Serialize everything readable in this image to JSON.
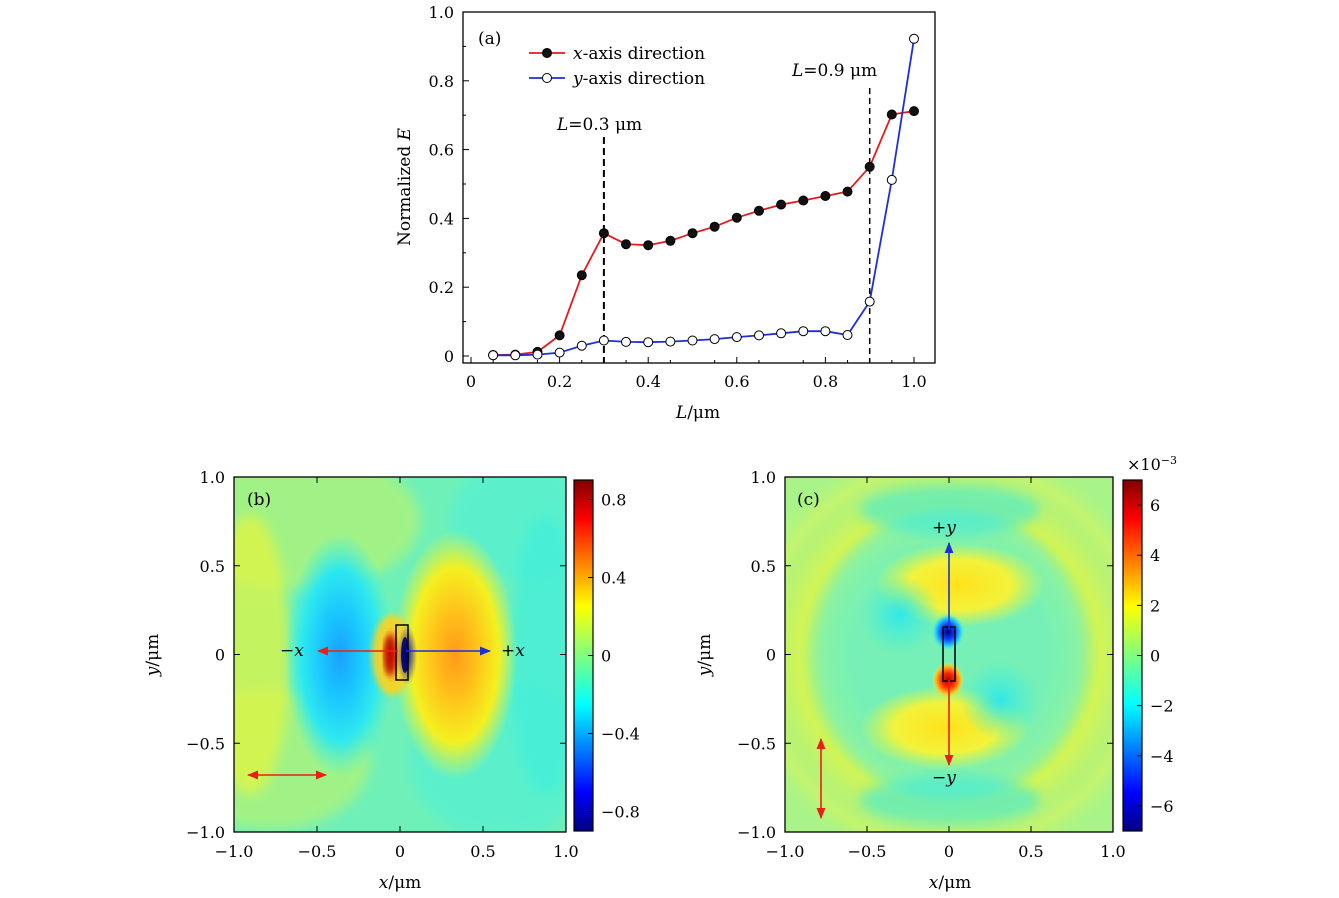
{
  "chart_data": [
    {
      "type": "line",
      "panel_label": "(a)",
      "xlabel_italic": "L",
      "xlabel_unit": "/μm",
      "ylabel_prefix": "Normalized ",
      "ylabel_italic": "E",
      "xlim": [
        0,
        1.0
      ],
      "ylim": [
        0,
        1.0
      ],
      "xticks": [
        "0",
        "0.2",
        "0.4",
        "0.6",
        "0.8",
        "1.0"
      ],
      "yticks": [
        "0",
        "0.2",
        "0.4",
        "0.6",
        "0.8",
        "1.0"
      ],
      "legend_position": "top-left",
      "series": [
        {
          "name_italic": "x",
          "name_rest": "-axis direction",
          "color": "#e41a1c",
          "marker": "filled-circle",
          "x": [
            0.05,
            0.1,
            0.15,
            0.2,
            0.25,
            0.3,
            0.35,
            0.4,
            0.45,
            0.5,
            0.55,
            0.6,
            0.65,
            0.7,
            0.75,
            0.8,
            0.85,
            0.9,
            0.95,
            1.0
          ],
          "y": [
            0.003,
            0.004,
            0.012,
            0.06,
            0.235,
            0.357,
            0.325,
            0.322,
            0.335,
            0.357,
            0.376,
            0.402,
            0.422,
            0.44,
            0.452,
            0.465,
            0.478,
            0.55,
            0.702,
            0.712
          ]
        },
        {
          "name_italic": "y",
          "name_rest": "-axis direction",
          "color": "#1f2fd6",
          "marker": "open-circle",
          "x": [
            0.05,
            0.1,
            0.15,
            0.2,
            0.25,
            0.3,
            0.35,
            0.4,
            0.45,
            0.5,
            0.55,
            0.6,
            0.65,
            0.7,
            0.75,
            0.8,
            0.85,
            0.9,
            0.95,
            1.0
          ],
          "y": [
            0.002,
            0.002,
            0.004,
            0.01,
            0.03,
            0.045,
            0.041,
            0.04,
            0.042,
            0.045,
            0.049,
            0.055,
            0.06,
            0.066,
            0.072,
            0.072,
            0.061,
            0.158,
            0.512,
            0.922
          ]
        }
      ],
      "annotations": [
        {
          "label_italic": "L",
          "label_rest": "=0.3 μm",
          "x": 0.3
        },
        {
          "label_italic": "L",
          "label_rest": "=0.9 μm",
          "x": 0.9
        }
      ]
    },
    {
      "type": "heatmap",
      "panel_label": "(b)",
      "xlabel_italic": "x",
      "xlabel_unit": "/μm",
      "ylabel_italic": "y",
      "ylabel_unit": "/μm",
      "xlim": [
        -1.0,
        1.0
      ],
      "ylim": [
        -1.0,
        1.0
      ],
      "xticks": [
        "−1.0",
        "−0.5",
        "0",
        "0.5",
        "1.0"
      ],
      "yticks": [
        "−1.0",
        "−0.5",
        "0",
        "0.5",
        "1.0"
      ],
      "colorbar_range": [
        -0.9,
        0.9
      ],
      "colorbar_ticks": [
        "0.8",
        "0.4",
        "0",
        "−0.4",
        "−0.8"
      ],
      "colorbar_values": [
        0.8,
        0.4,
        0,
        -0.4,
        -0.8
      ],
      "colormap": "jet",
      "annotations": {
        "minus": "−x",
        "plus": "+x"
      }
    },
    {
      "type": "heatmap",
      "panel_label": "(c)",
      "xlabel_italic": "x",
      "xlabel_unit": "/μm",
      "ylabel_italic": "y",
      "ylabel_unit": "/μm",
      "xlim": [
        -1.0,
        1.0
      ],
      "ylim": [
        -1.0,
        1.0
      ],
      "xticks": [
        "−1.0",
        "−0.5",
        "0",
        "0.5",
        "1.0"
      ],
      "yticks": [
        "−1.0",
        "−0.5",
        "0",
        "0.5",
        "1.0"
      ],
      "colorbar_range": [
        -7,
        7
      ],
      "colorbar_ticks": [
        "6",
        "4",
        "2",
        "0",
        "−2",
        "−4",
        "−6"
      ],
      "colorbar_values": [
        6,
        4,
        2,
        0,
        -2,
        -4,
        -6
      ],
      "colorbar_multiplier": "×10",
      "colorbar_exponent": "−3",
      "colormap": "jet",
      "annotations": {
        "plus": "+y",
        "minus": "−y"
      }
    }
  ],
  "colors": {
    "red_arrow": "#e8201a",
    "blue_arrow": "#1f2fd6",
    "field_base": "#5ff0c8"
  }
}
